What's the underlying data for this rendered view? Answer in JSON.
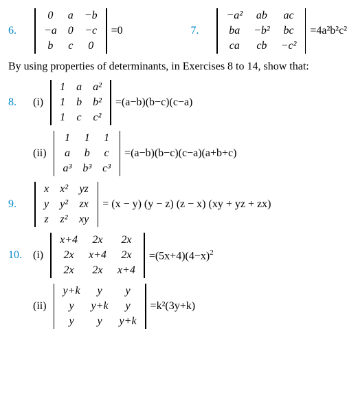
{
  "ex6": {
    "num": "6.",
    "m": [
      [
        "0",
        "a",
        "−b"
      ],
      [
        "−a",
        "0",
        "−c"
      ],
      [
        "b",
        "c",
        "0"
      ]
    ],
    "rhs": "=0"
  },
  "ex7": {
    "num": "7.",
    "m": [
      [
        "−a²",
        "ab",
        "ac"
      ],
      [
        "ba",
        "−b²",
        "bc"
      ],
      [
        "ca",
        "cb",
        "−c²"
      ]
    ],
    "rhs": "=4a²b²c²"
  },
  "intro": "By using properties of determinants, in Exercises 8 to 14, show that:",
  "ex8": {
    "num": "8.",
    "i": {
      "sub": "(i)",
      "m": [
        [
          "1",
          "a",
          "a²"
        ],
        [
          "1",
          "b",
          "b²"
        ],
        [
          "1",
          "c",
          "c²"
        ]
      ],
      "rhs": "=(a−b)(b−c)(c−a)"
    },
    "ii": {
      "sub": "(ii)",
      "m": [
        [
          "1",
          "1",
          "1"
        ],
        [
          "a",
          "b",
          "c"
        ],
        [
          "a³",
          "b³",
          "c³"
        ]
      ],
      "rhs": "=(a−b)(b−c)(c−a)(a+b+c)"
    }
  },
  "ex9": {
    "num": "9.",
    "m": [
      [
        "x",
        "x²",
        "yz"
      ],
      [
        "y",
        "y²",
        "zx"
      ],
      [
        "z",
        "z²",
        "xy"
      ]
    ],
    "rhs": "= (x − y) (y − z) (z − x) (xy + yz + zx)"
  },
  "ex10": {
    "num": "10.",
    "i": {
      "sub": "(i)",
      "m": [
        [
          "x+4",
          "2x",
          "2x"
        ],
        [
          "2x",
          "x+4",
          "2x"
        ],
        [
          "2x",
          "2x",
          "x+4"
        ]
      ],
      "rhs_a": "=(5x+4)(4−x)",
      "rhs_sup": "2"
    },
    "ii": {
      "sub": "(ii)",
      "m": [
        [
          "y+k",
          "y",
          "y"
        ],
        [
          "y",
          "y+k",
          "y"
        ],
        [
          "y",
          "y",
          "y+k"
        ]
      ],
      "rhs": "=k²(3y+k)"
    }
  }
}
